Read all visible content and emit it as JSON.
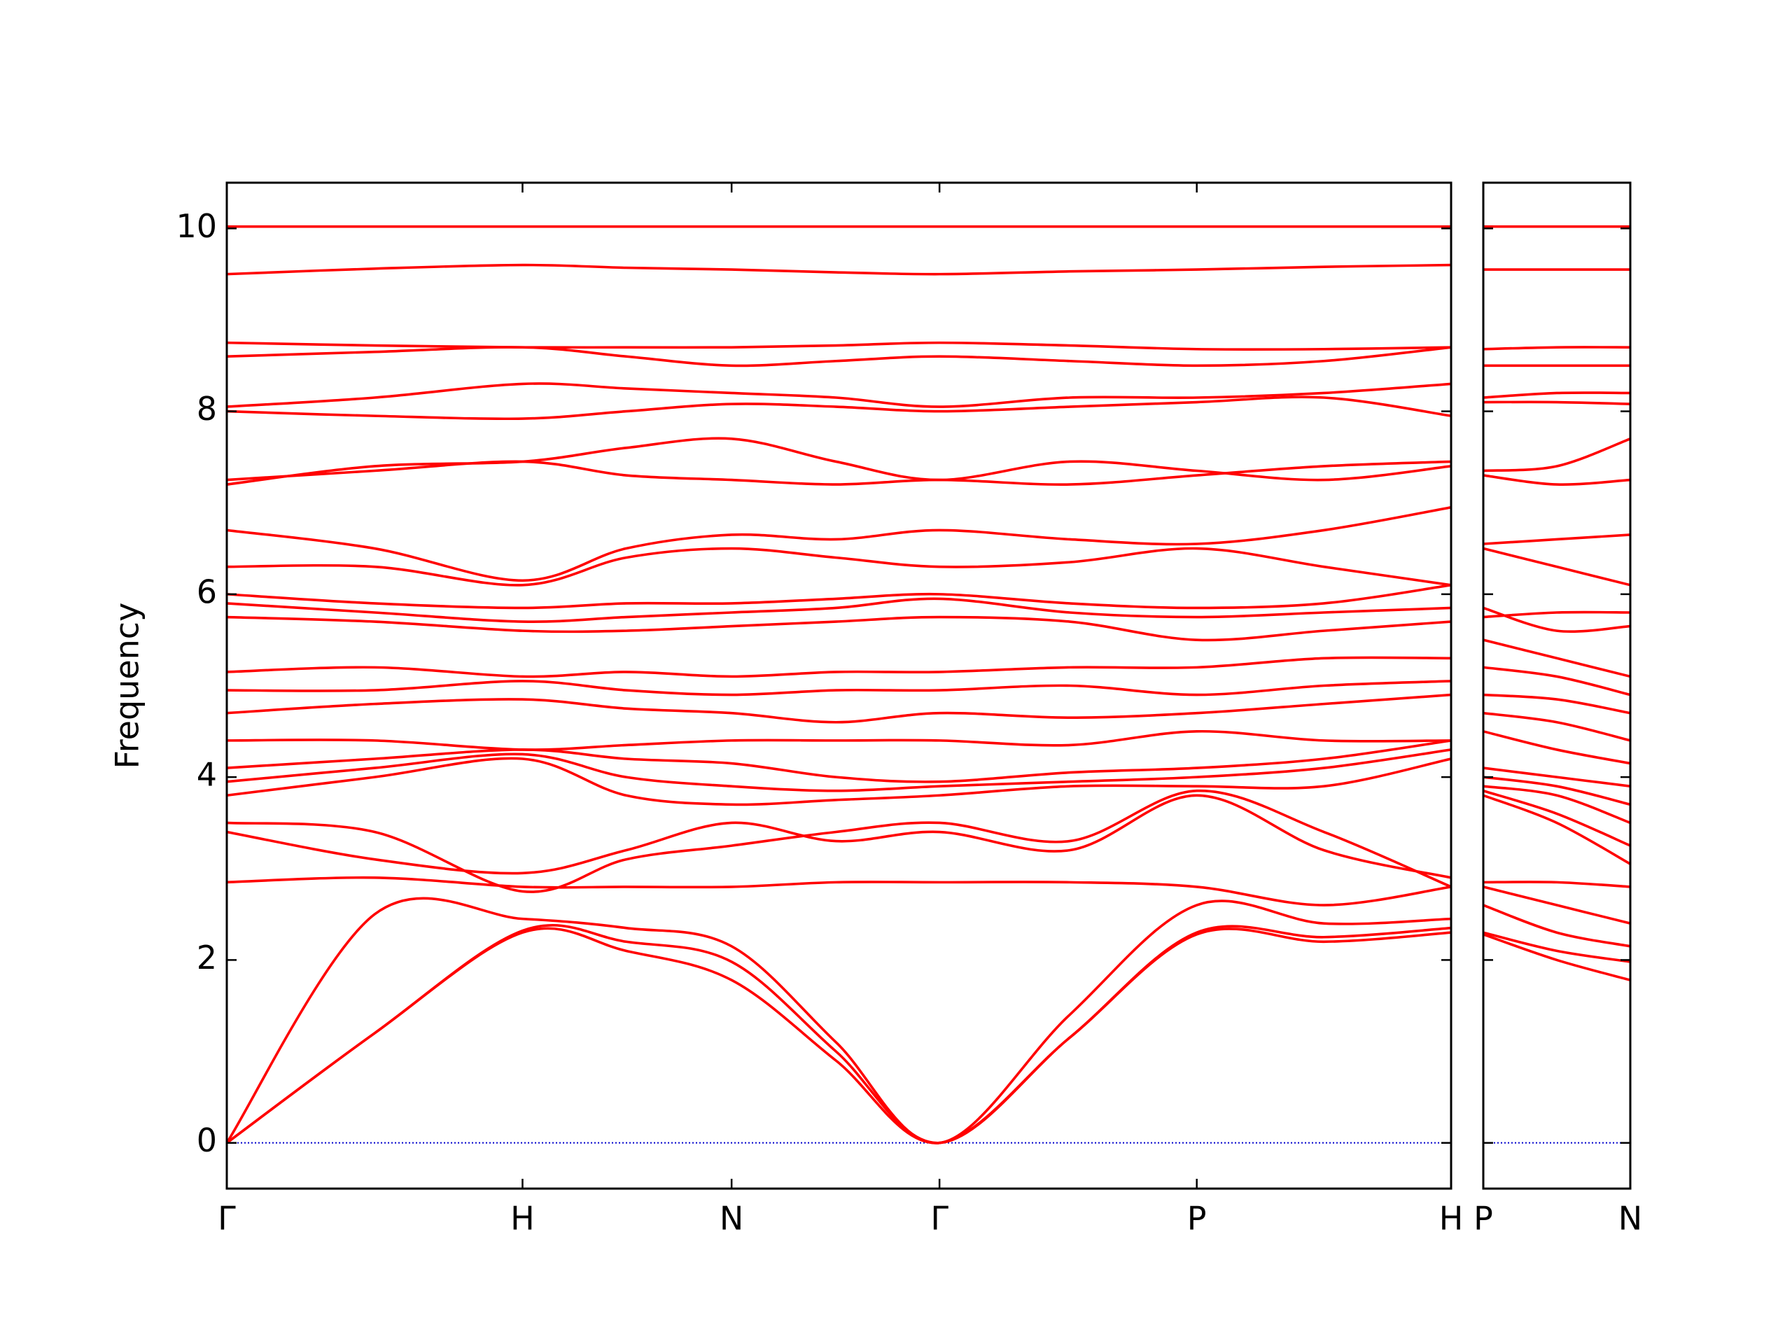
{
  "chart_data": [
    {
      "type": "line",
      "ylabel": "Frequency",
      "color": "#ff0000",
      "zero_line_color": "#0000cc",
      "xlim": [
        0,
        4.14
      ],
      "ylim": [
        -0.5,
        10.5
      ],
      "yticks": [
        0,
        2,
        4,
        6,
        8,
        10
      ],
      "xticks": [
        {
          "value": 0,
          "label": "Γ"
        },
        {
          "value": 1,
          "label": "H"
        },
        {
          "value": 1.707,
          "label": "N"
        },
        {
          "value": 2.41,
          "label": "Γ"
        },
        {
          "value": 3.28,
          "label": "P"
        },
        {
          "value": 4.14,
          "label": "H"
        }
      ],
      "x": [
        0,
        0.5,
        1,
        1.35,
        1.707,
        2.06,
        2.41,
        2.85,
        3.28,
        3.71,
        4.14
      ],
      "series": [
        {
          "values": [
            0,
            1.2,
            2.3,
            2.1,
            1.78,
            0.9,
            0,
            1.15,
            2.28,
            2.2,
            2.3
          ]
        },
        {
          "values": [
            0,
            1.2,
            2.32,
            2.2,
            1.98,
            1.0,
            0,
            1.15,
            2.3,
            2.25,
            2.35
          ]
        },
        {
          "values": [
            0,
            2.5,
            2.45,
            2.35,
            2.15,
            1.1,
            0,
            1.4,
            2.6,
            2.4,
            2.45
          ]
        },
        {
          "values": [
            2.85,
            2.9,
            2.8,
            2.8,
            2.8,
            2.85,
            2.85,
            2.85,
            2.8,
            2.6,
            2.8
          ]
        },
        {
          "values": [
            3.4,
            3.1,
            2.95,
            3.2,
            3.5,
            3.3,
            3.4,
            3.2,
            3.8,
            3.2,
            2.9
          ]
        },
        {
          "values": [
            3.5,
            3.4,
            2.75,
            3.1,
            3.25,
            3.4,
            3.5,
            3.3,
            3.85,
            3.4,
            2.8
          ]
        },
        {
          "values": [
            3.8,
            4.0,
            4.2,
            3.8,
            3.7,
            3.75,
            3.8,
            3.9,
            3.9,
            3.9,
            4.2
          ]
        },
        {
          "values": [
            3.95,
            4.1,
            4.25,
            4.0,
            3.9,
            3.85,
            3.9,
            3.95,
            4.0,
            4.1,
            4.3
          ]
        },
        {
          "values": [
            4.1,
            4.2,
            4.3,
            4.2,
            4.15,
            4.0,
            3.95,
            4.05,
            4.1,
            4.2,
            4.4
          ]
        },
        {
          "values": [
            4.4,
            4.4,
            4.3,
            4.35,
            4.4,
            4.4,
            4.4,
            4.35,
            4.5,
            4.4,
            4.4
          ]
        },
        {
          "values": [
            4.7,
            4.8,
            4.85,
            4.75,
            4.7,
            4.6,
            4.7,
            4.65,
            4.7,
            4.8,
            4.9
          ]
        },
        {
          "values": [
            4.95,
            4.95,
            5.05,
            4.95,
            4.9,
            4.95,
            4.95,
            5.0,
            4.9,
            5.0,
            5.05
          ]
        },
        {
          "values": [
            5.15,
            5.2,
            5.1,
            5.15,
            5.1,
            5.15,
            5.15,
            5.2,
            5.2,
            5.3,
            5.3
          ]
        },
        {
          "values": [
            5.75,
            5.7,
            5.6,
            5.6,
            5.65,
            5.7,
            5.75,
            5.7,
            5.5,
            5.6,
            5.7
          ]
        },
        {
          "values": [
            5.9,
            5.8,
            5.7,
            5.75,
            5.8,
            5.85,
            5.95,
            5.8,
            5.75,
            5.8,
            5.85
          ]
        },
        {
          "values": [
            6.0,
            5.9,
            5.85,
            5.9,
            5.9,
            5.95,
            6.0,
            5.9,
            5.85,
            5.9,
            6.1
          ]
        },
        {
          "values": [
            6.3,
            6.3,
            6.1,
            6.4,
            6.5,
            6.4,
            6.3,
            6.35,
            6.5,
            6.3,
            6.1
          ]
        },
        {
          "values": [
            6.7,
            6.5,
            6.15,
            6.5,
            6.65,
            6.6,
            6.7,
            6.6,
            6.55,
            6.7,
            6.95
          ]
        },
        {
          "values": [
            7.25,
            7.35,
            7.45,
            7.3,
            7.25,
            7.2,
            7.25,
            7.2,
            7.3,
            7.4,
            7.45
          ]
        },
        {
          "values": [
            7.2,
            7.4,
            7.45,
            7.6,
            7.7,
            7.45,
            7.25,
            7.45,
            7.35,
            7.25,
            7.4
          ]
        },
        {
          "values": [
            8.0,
            7.95,
            7.92,
            8.0,
            8.08,
            8.05,
            8.0,
            8.05,
            8.1,
            8.15,
            7.95
          ]
        },
        {
          "values": [
            8.05,
            8.15,
            8.3,
            8.25,
            8.2,
            8.15,
            8.05,
            8.15,
            8.15,
            8.2,
            8.3
          ]
        },
        {
          "values": [
            8.6,
            8.65,
            8.7,
            8.6,
            8.5,
            8.55,
            8.6,
            8.55,
            8.5,
            8.55,
            8.7
          ]
        },
        {
          "values": [
            8.75,
            8.72,
            8.7,
            8.7,
            8.7,
            8.72,
            8.75,
            8.72,
            8.68,
            8.68,
            8.7
          ]
        },
        {
          "values": [
            9.5,
            9.56,
            9.6,
            9.57,
            9.55,
            9.52,
            9.5,
            9.53,
            9.55,
            9.58,
            9.6
          ]
        },
        {
          "values": [
            10.02,
            10.02,
            10.02,
            10.02,
            10.02,
            10.02,
            10.02,
            10.02,
            10.02,
            10.02,
            10.02
          ]
        }
      ]
    },
    {
      "type": "line",
      "color": "#ff0000",
      "zero_line_color": "#0000cc",
      "ytick_labels": false,
      "xlim": [
        0,
        0.5
      ],
      "ylim": [
        -0.5,
        10.5
      ],
      "yticks": [
        0,
        2,
        4,
        6,
        8,
        10
      ],
      "xticks": [
        {
          "value": 0,
          "label": "P"
        },
        {
          "value": 0.5,
          "label": "N"
        }
      ],
      "x": [
        0,
        0.25,
        0.5
      ],
      "series": [
        {
          "values": [
            2.28,
            2.0,
            1.78
          ]
        },
        {
          "values": [
            2.3,
            2.1,
            1.98
          ]
        },
        {
          "values": [
            2.6,
            2.3,
            2.15
          ]
        },
        {
          "values": [
            2.8,
            2.6,
            2.4
          ]
        },
        {
          "values": [
            2.85,
            2.85,
            2.8
          ]
        },
        {
          "values": [
            3.8,
            3.5,
            3.05
          ]
        },
        {
          "values": [
            3.85,
            3.6,
            3.25
          ]
        },
        {
          "values": [
            3.9,
            3.8,
            3.5
          ]
        },
        {
          "values": [
            4.0,
            3.9,
            3.7
          ]
        },
        {
          "values": [
            4.1,
            4.0,
            3.9
          ]
        },
        {
          "values": [
            4.5,
            4.3,
            4.15
          ]
        },
        {
          "values": [
            4.7,
            4.6,
            4.4
          ]
        },
        {
          "values": [
            4.9,
            4.85,
            4.7
          ]
        },
        {
          "values": [
            5.2,
            5.1,
            4.9
          ]
        },
        {
          "values": [
            5.5,
            5.3,
            5.1
          ]
        },
        {
          "values": [
            5.75,
            5.8,
            5.8
          ]
        },
        {
          "values": [
            5.85,
            5.6,
            5.65
          ]
        },
        {
          "values": [
            6.5,
            6.3,
            6.1
          ]
        },
        {
          "values": [
            6.55,
            6.6,
            6.65
          ]
        },
        {
          "values": [
            7.3,
            7.2,
            7.25
          ]
        },
        {
          "values": [
            7.35,
            7.4,
            7.7
          ]
        },
        {
          "values": [
            8.1,
            8.1,
            8.08
          ]
        },
        {
          "values": [
            8.15,
            8.2,
            8.2
          ]
        },
        {
          "values": [
            8.5,
            8.5,
            8.5
          ]
        },
        {
          "values": [
            8.68,
            8.7,
            8.7
          ]
        },
        {
          "values": [
            9.55,
            9.55,
            9.55
          ]
        },
        {
          "values": [
            10.02,
            10.02,
            10.02
          ]
        }
      ]
    }
  ]
}
